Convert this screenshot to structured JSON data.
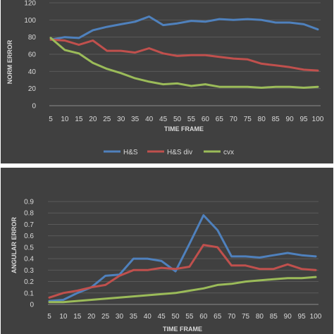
{
  "chart_data": [
    {
      "type": "line",
      "x": [
        5,
        10,
        15,
        20,
        25,
        30,
        35,
        40,
        45,
        50,
        55,
        60,
        65,
        70,
        75,
        80,
        85,
        90,
        95,
        100
      ],
      "xlabel": "TIME FRAME",
      "ylabel": "NORM ERROR",
      "ylim": [
        0,
        120
      ],
      "yticks": [
        0,
        20,
        40,
        60,
        80,
        100,
        120
      ],
      "grid": true,
      "legend": "bottom",
      "series": [
        {
          "name": "H&S",
          "color": "#4f81bd",
          "values": [
            77,
            80,
            79,
            88,
            92,
            95,
            98,
            104,
            94,
            96,
            99,
            98,
            101,
            100,
            101,
            100,
            97,
            97,
            95,
            89
          ]
        },
        {
          "name": "H&S div",
          "color": "#c0504d",
          "values": [
            77,
            76,
            71,
            76,
            64,
            64,
            62,
            67,
            61,
            58,
            59,
            59,
            57,
            55,
            54,
            49,
            47,
            45,
            42,
            41
          ]
        },
        {
          "name": "cvx",
          "color": "#9bbb59",
          "values": [
            79,
            65,
            61,
            50,
            43,
            38,
            32,
            28,
            25,
            26,
            23,
            25,
            22,
            22,
            22,
            21,
            22,
            22,
            21,
            22
          ]
        }
      ]
    },
    {
      "type": "line",
      "x": [
        5,
        10,
        15,
        20,
        25,
        30,
        35,
        40,
        45,
        50,
        55,
        60,
        65,
        70,
        75,
        80,
        85,
        90,
        95,
        100
      ],
      "xlabel": "TIME FRAME",
      "ylabel": "ANGULAR ERROR",
      "ylim": [
        0,
        0.9
      ],
      "yticks": [
        "0",
        "0.1",
        "0.2",
        "0.3",
        "0.4",
        "0.5",
        "0.6",
        "0.7",
        "0.8",
        "0.9"
      ],
      "grid": true,
      "series": [
        {
          "name": "H&S",
          "color": "#4f81bd",
          "values": [
            0.03,
            0.04,
            0.1,
            0.15,
            0.25,
            0.26,
            0.4,
            0.4,
            0.38,
            0.29,
            0.53,
            0.78,
            0.65,
            0.42,
            0.42,
            0.41,
            0.43,
            0.45,
            0.43,
            0.42
          ]
        },
        {
          "name": "H&S div",
          "color": "#c0504d",
          "values": [
            0.06,
            0.1,
            0.12,
            0.15,
            0.17,
            0.25,
            0.3,
            0.3,
            0.32,
            0.31,
            0.33,
            0.52,
            0.5,
            0.34,
            0.34,
            0.31,
            0.31,
            0.35,
            0.31,
            0.3
          ]
        },
        {
          "name": "cvx",
          "color": "#9bbb59",
          "values": [
            0.02,
            0.02,
            0.03,
            0.04,
            0.05,
            0.06,
            0.07,
            0.08,
            0.09,
            0.1,
            0.12,
            0.14,
            0.17,
            0.18,
            0.2,
            0.21,
            0.22,
            0.23,
            0.23,
            0.24
          ]
        }
      ]
    }
  ]
}
